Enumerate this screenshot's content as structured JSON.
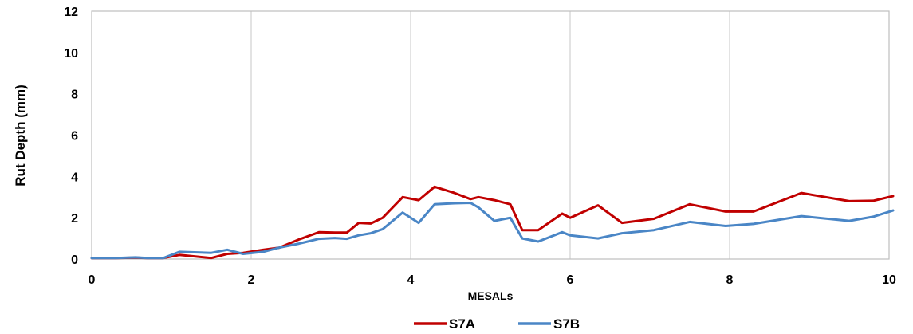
{
  "chart_data": {
    "type": "line",
    "xlabel": "MESALs",
    "ylabel": "Rut Depth (mm)",
    "xlim": [
      0,
      10
    ],
    "ylim": [
      0,
      12
    ],
    "x_ticks": [
      0,
      2,
      4,
      6,
      8,
      10
    ],
    "y_ticks": [
      0,
      2,
      4,
      6,
      8,
      10,
      12
    ],
    "grid": "vertical",
    "legend_position": "bottom",
    "series": [
      {
        "name": "S7A",
        "color": "#c00000",
        "points": [
          [
            0,
            0.05
          ],
          [
            0.3,
            0.05
          ],
          [
            0.55,
            0.07
          ],
          [
            0.7,
            0.05
          ],
          [
            0.9,
            0.05
          ],
          [
            1.1,
            0.2
          ],
          [
            1.5,
            0.05
          ],
          [
            1.7,
            0.25
          ],
          [
            1.9,
            0.3
          ],
          [
            2.15,
            0.45
          ],
          [
            2.35,
            0.55
          ],
          [
            2.6,
            0.95
          ],
          [
            2.85,
            1.3
          ],
          [
            3.05,
            1.28
          ],
          [
            3.2,
            1.28
          ],
          [
            3.35,
            1.75
          ],
          [
            3.5,
            1.72
          ],
          [
            3.65,
            2.0
          ],
          [
            3.9,
            3.0
          ],
          [
            4.1,
            2.85
          ],
          [
            4.3,
            3.5
          ],
          [
            4.55,
            3.2
          ],
          [
            4.75,
            2.9
          ],
          [
            4.85,
            3.0
          ],
          [
            5.05,
            2.85
          ],
          [
            5.25,
            2.65
          ],
          [
            5.4,
            1.4
          ],
          [
            5.6,
            1.4
          ],
          [
            5.9,
            2.2
          ],
          [
            6.0,
            2.0
          ],
          [
            6.35,
            2.6
          ],
          [
            6.65,
            1.75
          ],
          [
            7.05,
            1.95
          ],
          [
            7.5,
            2.65
          ],
          [
            7.95,
            2.3
          ],
          [
            8.3,
            2.3
          ],
          [
            8.9,
            3.2
          ],
          [
            9.5,
            2.8
          ],
          [
            9.8,
            2.82
          ],
          [
            10.05,
            3.05
          ]
        ]
      },
      {
        "name": "S7B",
        "color": "#4a86c6",
        "points": [
          [
            0,
            0.05
          ],
          [
            0.3,
            0.05
          ],
          [
            0.55,
            0.08
          ],
          [
            0.7,
            0.05
          ],
          [
            0.9,
            0.05
          ],
          [
            1.1,
            0.35
          ],
          [
            1.5,
            0.3
          ],
          [
            1.7,
            0.45
          ],
          [
            1.9,
            0.25
          ],
          [
            2.15,
            0.35
          ],
          [
            2.35,
            0.55
          ],
          [
            2.6,
            0.75
          ],
          [
            2.85,
            0.98
          ],
          [
            3.05,
            1.02
          ],
          [
            3.2,
            0.98
          ],
          [
            3.35,
            1.15
          ],
          [
            3.5,
            1.25
          ],
          [
            3.65,
            1.45
          ],
          [
            3.9,
            2.25
          ],
          [
            4.1,
            1.75
          ],
          [
            4.3,
            2.65
          ],
          [
            4.55,
            2.7
          ],
          [
            4.75,
            2.72
          ],
          [
            4.85,
            2.5
          ],
          [
            5.05,
            1.85
          ],
          [
            5.25,
            2.0
          ],
          [
            5.4,
            1.0
          ],
          [
            5.6,
            0.85
          ],
          [
            5.9,
            1.3
          ],
          [
            6.0,
            1.15
          ],
          [
            6.35,
            1.0
          ],
          [
            6.65,
            1.25
          ],
          [
            7.05,
            1.4
          ],
          [
            7.5,
            1.8
          ],
          [
            7.95,
            1.6
          ],
          [
            8.3,
            1.7
          ],
          [
            8.9,
            2.08
          ],
          [
            9.5,
            1.85
          ],
          [
            9.8,
            2.05
          ],
          [
            10.05,
            2.35
          ]
        ]
      }
    ]
  }
}
